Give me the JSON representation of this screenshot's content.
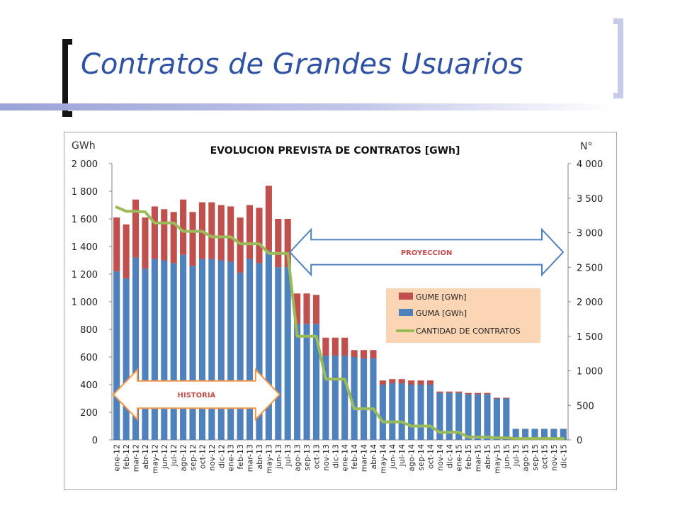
{
  "slide": {
    "title": "Contratos de Grandes Usuarios"
  },
  "chart_data": {
    "type": "bar",
    "stacked": true,
    "title": "EVOLUCION PREVISTA DE CONTRATOS [GWh]",
    "y_left_label": "GWh",
    "y_right_label": "N°",
    "y_left_range": [
      0,
      2000
    ],
    "y_right_range": [
      0,
      4000
    ],
    "y_left_ticks": [
      "0",
      "200",
      "400",
      "600",
      "800",
      "1 000",
      "1 200",
      "1 400",
      "1 600",
      "1 800",
      "2 000"
    ],
    "y_right_ticks": [
      "0",
      "500",
      "1 000",
      "1 500",
      "2 000",
      "2 500",
      "3 000",
      "3 500",
      "4 000"
    ],
    "categories": [
      "ene-12",
      "feb-12",
      "mar-12",
      "abr-12",
      "may-12",
      "jun-12",
      "jul-12",
      "ago-12",
      "sep-12",
      "oct-12",
      "nov-12",
      "dic-12",
      "ene-13",
      "feb-13",
      "mar-13",
      "abr-13",
      "may-13",
      "jun-13",
      "jul-13",
      "ago-13",
      "sep-13",
      "oct-13",
      "nov-13",
      "dic-13",
      "ene-14",
      "feb-14",
      "mar-14",
      "abr-14",
      "may-14",
      "jun-14",
      "jul-14",
      "ago-14",
      "sep-14",
      "oct-14",
      "nov-14",
      "dic-14",
      "ene-15",
      "feb-15",
      "mar-15",
      "abr-15",
      "may-15",
      "jun-15",
      "jul-15",
      "ago-15",
      "sep-15",
      "oct-15",
      "nov-15",
      "dic-15"
    ],
    "grid": false,
    "legend_position": "center-right",
    "series": [
      {
        "name": "GUMA [GWh]",
        "type": "bar",
        "axis": "left",
        "color": "#4f81bd",
        "values": [
          1220,
          1170,
          1320,
          1240,
          1310,
          1300,
          1280,
          1340,
          1260,
          1310,
          1310,
          1300,
          1290,
          1210,
          1310,
          1280,
          1370,
          1250,
          1250,
          840,
          840,
          840,
          610,
          610,
          610,
          600,
          590,
          590,
          400,
          410,
          410,
          400,
          400,
          400,
          340,
          340,
          340,
          330,
          330,
          330,
          300,
          300,
          80,
          80,
          80,
          80,
          80,
          80
        ]
      },
      {
        "name": "GUME [GWh]",
        "type": "bar",
        "axis": "left",
        "color": "#c0504d",
        "values": [
          390,
          390,
          420,
          370,
          380,
          370,
          370,
          400,
          390,
          410,
          410,
          400,
          400,
          400,
          390,
          400,
          470,
          350,
          350,
          220,
          220,
          210,
          130,
          130,
          130,
          50,
          60,
          60,
          30,
          30,
          30,
          30,
          30,
          30,
          10,
          10,
          10,
          10,
          10,
          10,
          5,
          5,
          0,
          0,
          0,
          0,
          0,
          0
        ]
      },
      {
        "name": "CANTIDAD DE CONTRATOS",
        "type": "line",
        "axis": "right",
        "color": "#9bbb59",
        "values": [
          3370,
          3310,
          3310,
          3300,
          3140,
          3140,
          3140,
          3020,
          3020,
          3020,
          2940,
          2940,
          2940,
          2840,
          2840,
          2840,
          2700,
          2700,
          2700,
          1500,
          1500,
          1500,
          880,
          880,
          880,
          450,
          450,
          450,
          260,
          260,
          260,
          200,
          200,
          200,
          110,
          110,
          110,
          40,
          40,
          40,
          30,
          30,
          20,
          20,
          20,
          20,
          20,
          20
        ]
      }
    ],
    "annotations": [
      {
        "label": "PROYECCION",
        "from": "jul-13",
        "to": "jun-15"
      },
      {
        "label": "HISTORIA",
        "from": "ene-12",
        "to": "jun-13"
      }
    ]
  }
}
